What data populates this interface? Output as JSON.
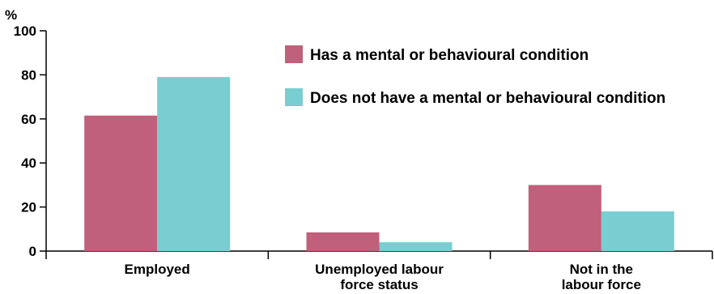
{
  "chart_data": {
    "type": "bar",
    "ylabel": "%",
    "ylim": [
      0,
      100
    ],
    "yticks": [
      0,
      20,
      40,
      60,
      80,
      100
    ],
    "categories": [
      [
        "Employed"
      ],
      [
        "Unemployed labour",
        "force status"
      ],
      [
        "Not in the",
        "labour force"
      ]
    ],
    "series": [
      {
        "name": "Has a mental or behavioural condition",
        "color": "#c0607a",
        "values": [
          61.5,
          8.5,
          30
        ]
      },
      {
        "name": "Does not have a mental or behavioural condition",
        "color": "#78ced0",
        "values": [
          79,
          4,
          18
        ]
      }
    ],
    "grid": false,
    "legend": "top-right"
  }
}
